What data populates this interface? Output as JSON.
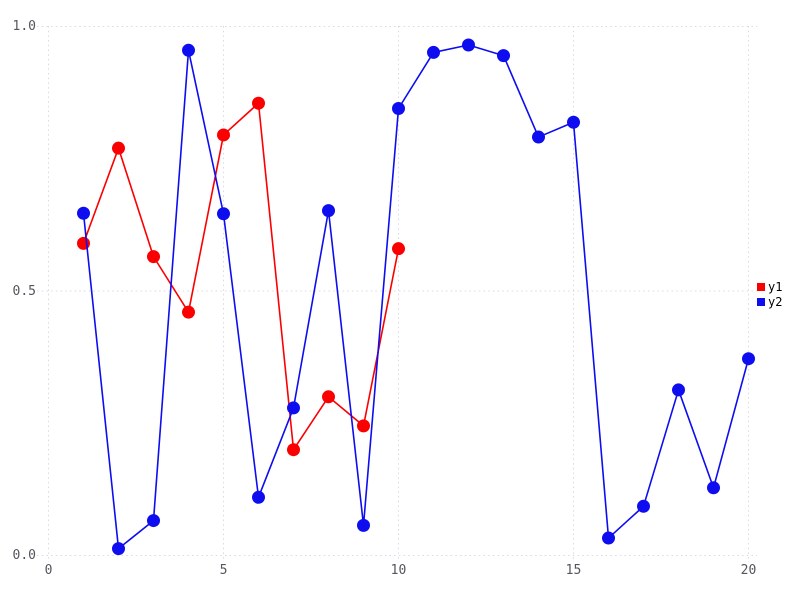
{
  "chart_data": {
    "type": "line",
    "title": "",
    "xlabel": "",
    "ylabel": "",
    "xlim": [
      0,
      20
    ],
    "ylim": [
      0.0,
      1.0
    ],
    "grid": "dotted",
    "marker": "circle",
    "legend_position": "right",
    "legend": [
      "y1",
      "y2"
    ],
    "xticks": {
      "values": [
        0,
        5,
        10,
        15,
        20
      ],
      "labels": [
        "0",
        "5",
        "10",
        "15",
        "20"
      ]
    },
    "yticks": {
      "values": [
        0,
        0.5,
        1.0
      ],
      "labels": [
        "0.0",
        "0.5",
        "1.0"
      ]
    },
    "series": [
      {
        "name": "y1",
        "color": "#fb0000",
        "x": [
          1,
          2,
          3,
          4,
          5,
          6,
          7,
          8,
          9,
          10
        ],
        "values": [
          0.59,
          0.77,
          0.565,
          0.46,
          0.795,
          0.855,
          0.2,
          0.3,
          0.245,
          0.58
        ]
      },
      {
        "name": "y2",
        "color": "#0d0df0",
        "x": [
          1,
          2,
          3,
          4,
          5,
          6,
          7,
          8,
          9,
          10,
          11,
          12,
          13,
          14,
          15,
          16,
          17,
          18,
          19,
          20
        ],
        "values": [
          0.647,
          0.013,
          0.066,
          0.955,
          0.646,
          0.11,
          0.279,
          0.652,
          0.057,
          0.845,
          0.951,
          0.965,
          0.945,
          0.791,
          0.819,
          0.033,
          0.093,
          0.313,
          0.128,
          0.372
        ]
      }
    ]
  },
  "colors": {
    "background": "#ffffff",
    "grid": "#d9d9e6",
    "tick_text": "#55555e",
    "legend_text": "#000000"
  }
}
